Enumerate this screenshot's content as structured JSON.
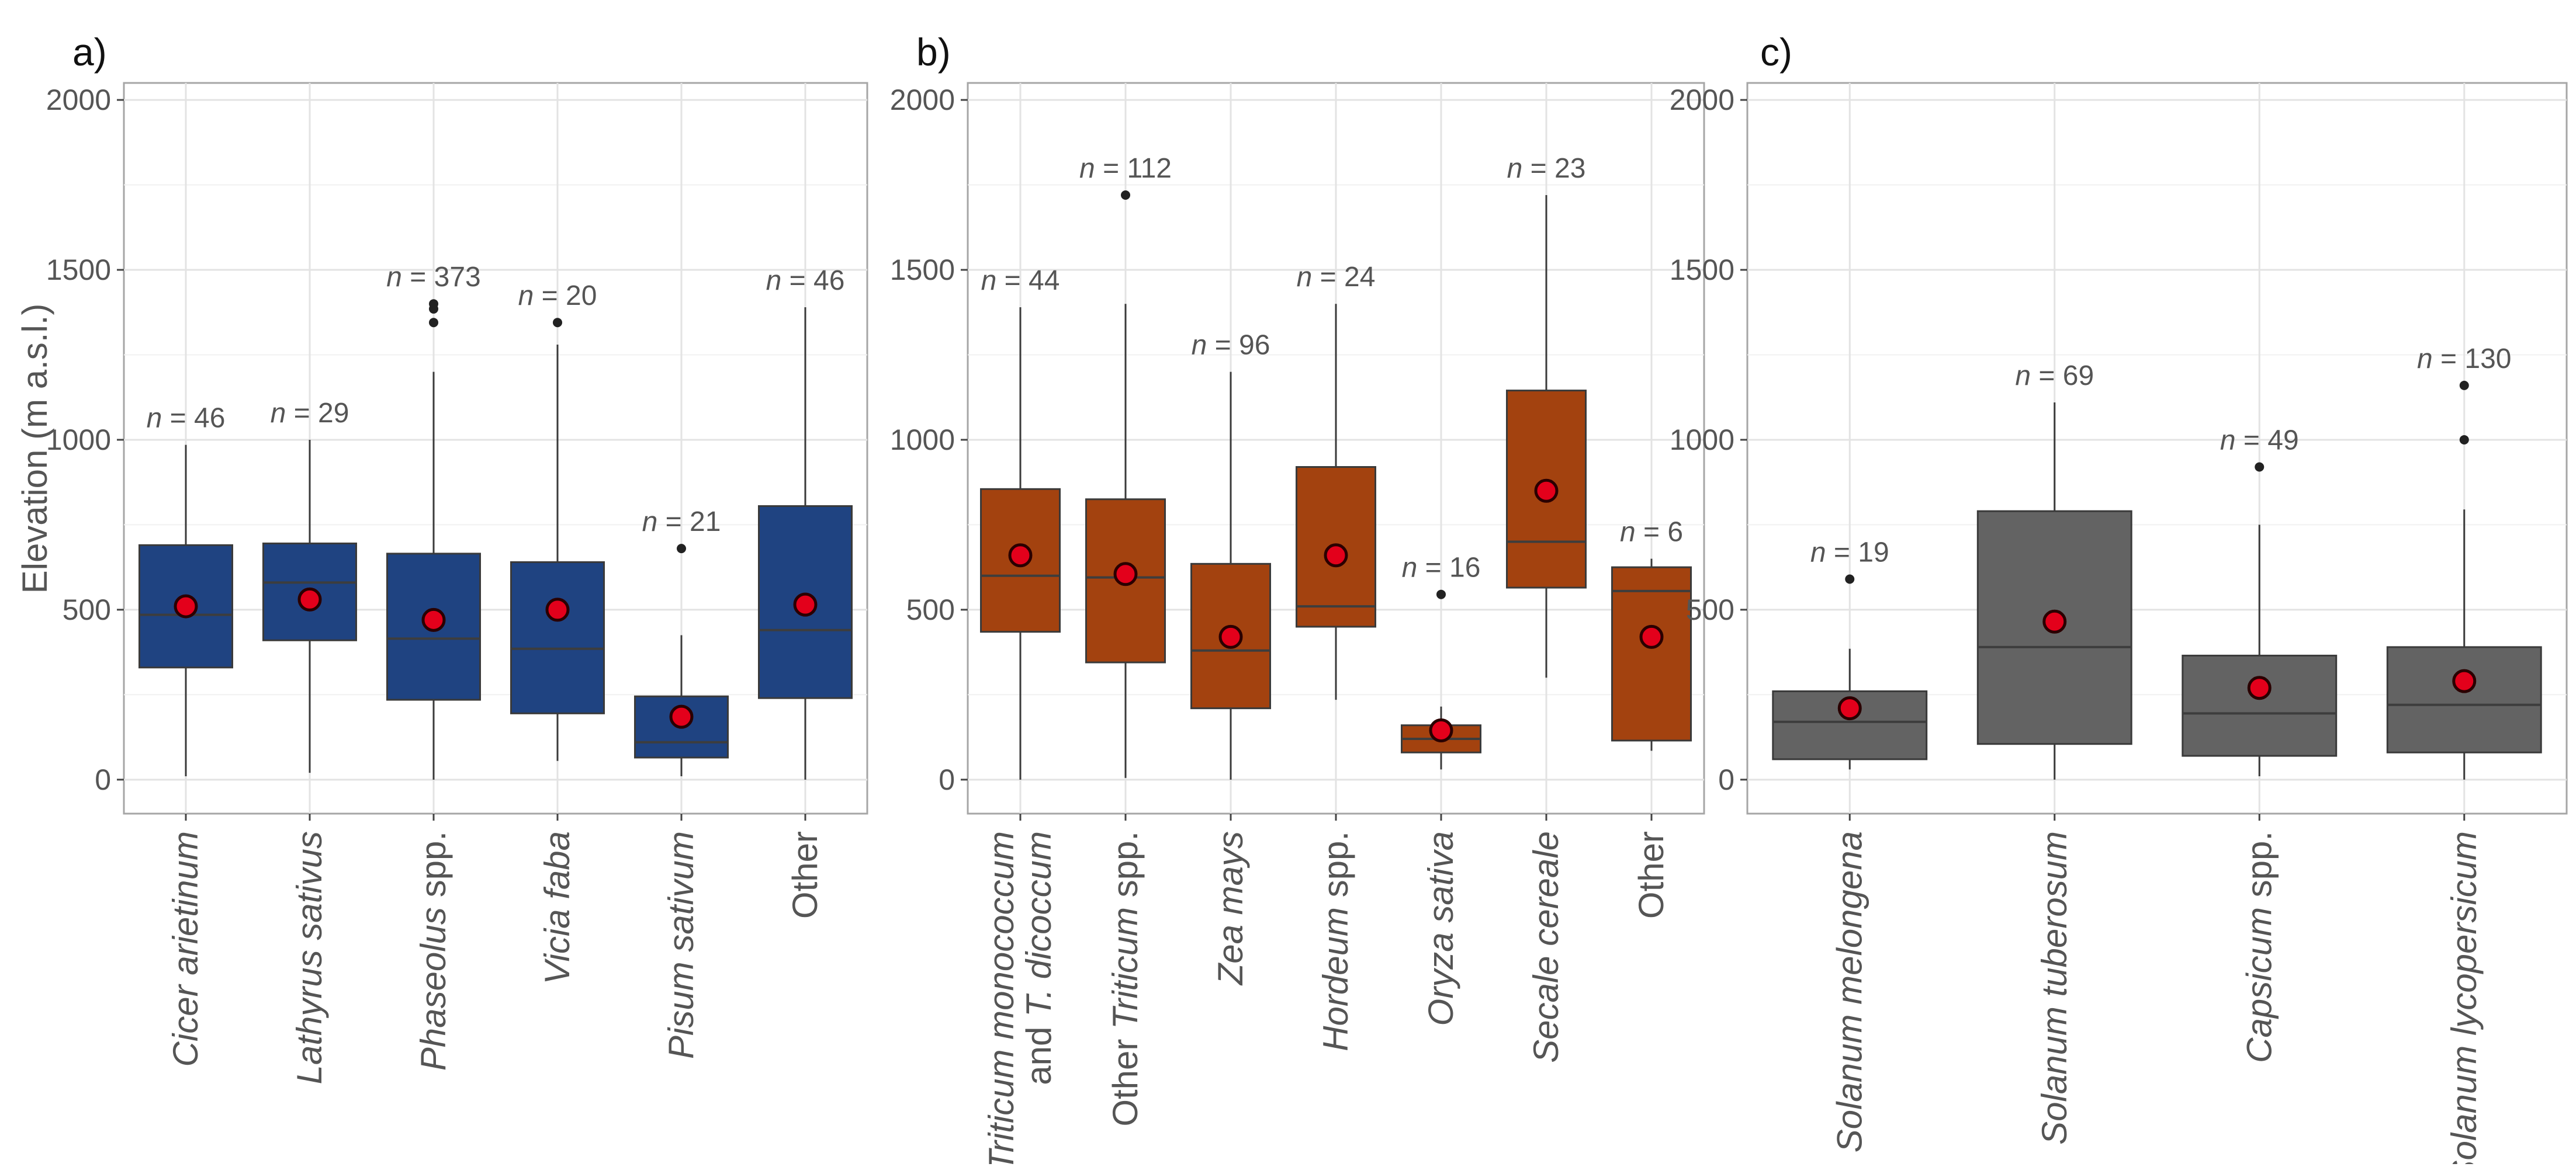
{
  "colors": {
    "legumes": "#1f4381",
    "cereals": "#a3420f",
    "solanaceae": "#636363",
    "mean_marker": "#e3001b",
    "gridline": "#e3e3e3",
    "frame": "#a6a6a6"
  },
  "y_axis_title": "Elevation (m a.s.l.)",
  "chart_data": [
    {
      "type": "box",
      "panel_label": "a)",
      "ylabel": "Elevation (m a.s.l.)",
      "ylim": [
        -100,
        2050
      ],
      "yticks": [
        0,
        500,
        1000,
        1500,
        2000
      ],
      "grid": true,
      "fill_color": "#1f4381",
      "categories": [
        {
          "name": "Cicer arietinum",
          "name_lines": [
            [
              {
                "t": "Cicer arietinum",
                "i": true
              }
            ]
          ],
          "n_label": "n = 46",
          "n": 46,
          "min": 10,
          "q1": 330,
          "median": 485,
          "q3": 690,
          "max": 985,
          "mean": 510,
          "outliers": []
        },
        {
          "name": "Lathyrus sativus",
          "name_lines": [
            [
              {
                "t": "Lathyrus sativus",
                "i": true
              }
            ]
          ],
          "n_label": "n = 29",
          "n": 29,
          "min": 20,
          "q1": 410,
          "median": 580,
          "q3": 695,
          "max": 1000,
          "mean": 530,
          "outliers": []
        },
        {
          "name": "Phaseolus spp.",
          "name_lines": [
            [
              {
                "t": "Phaseolus",
                "i": true
              },
              {
                "t": "  spp.",
                "i": false
              }
            ]
          ],
          "n_label": "n = 373",
          "n": 373,
          "min": 0,
          "q1": 235,
          "median": 415,
          "q3": 665,
          "max": 1200,
          "mean": 470,
          "outliers": [
            1345,
            1385,
            1400
          ]
        },
        {
          "name": "Vicia faba",
          "name_lines": [
            [
              {
                "t": "Vicia faba",
                "i": true
              }
            ]
          ],
          "n_label": "n = 20",
          "n": 20,
          "min": 55,
          "q1": 195,
          "median": 385,
          "q3": 640,
          "max": 1280,
          "mean": 500,
          "outliers": [
            1345
          ]
        },
        {
          "name": "Pisum sativum",
          "name_lines": [
            [
              {
                "t": "Pisum sativum",
                "i": true
              }
            ]
          ],
          "n_label": "n = 21",
          "n": 21,
          "min": 10,
          "q1": 65,
          "median": 110,
          "q3": 245,
          "max": 425,
          "mean": 185,
          "outliers": [
            680
          ]
        },
        {
          "name": "Other",
          "name_lines": [
            [
              {
                "t": "Other",
                "i": false
              }
            ]
          ],
          "n_label": "n = 46",
          "n": 46,
          "min": 0,
          "q1": 240,
          "median": 440,
          "q3": 805,
          "max": 1390,
          "mean": 515,
          "outliers": []
        }
      ]
    },
    {
      "type": "box",
      "panel_label": "b)",
      "ylim": [
        -100,
        2050
      ],
      "yticks": [
        0,
        500,
        1000,
        1500,
        2000
      ],
      "grid": true,
      "fill_color": "#a3420f",
      "categories": [
        {
          "name": "Triticum monococcum and T. dicoccum",
          "name_lines": [
            [
              {
                "t": "Triticum monococcum",
                "i": true
              }
            ],
            [
              {
                "t": "and  ",
                "i": false
              },
              {
                "t": "T. dicoccum",
                "i": true
              }
            ]
          ],
          "n_label": "n = 44",
          "n": 44,
          "min": 0,
          "q1": 435,
          "median": 600,
          "q3": 855,
          "max": 1390,
          "mean": 660,
          "outliers": []
        },
        {
          "name": "Other Triticum spp.",
          "name_lines": [
            [
              {
                "t": "Other ",
                "i": false
              },
              {
                "t": "Triticum",
                "i": true
              },
              {
                "t": " spp.",
                "i": false
              }
            ]
          ],
          "n_label": "n = 112",
          "n": 112,
          "min": 5,
          "q1": 345,
          "median": 595,
          "q3": 825,
          "max": 1400,
          "mean": 605,
          "outliers": [
            1720
          ]
        },
        {
          "name": "Zea mays",
          "name_lines": [
            [
              {
                "t": "Zea mays",
                "i": true
              }
            ]
          ],
          "n_label": "n = 96",
          "n": 96,
          "min": 0,
          "q1": 210,
          "median": 380,
          "q3": 635,
          "max": 1200,
          "mean": 420,
          "outliers": []
        },
        {
          "name": "Hordeum spp.",
          "name_lines": [
            [
              {
                "t": "Hordeum",
                "i": true
              },
              {
                "t": " spp.",
                "i": false
              }
            ]
          ],
          "n_label": "n = 24",
          "n": 24,
          "min": 235,
          "q1": 450,
          "median": 510,
          "q3": 920,
          "max": 1400,
          "mean": 660,
          "outliers": []
        },
        {
          "name": "Oryza sativa",
          "name_lines": [
            [
              {
                "t": "Oryza sativa",
                "i": true
              }
            ]
          ],
          "n_label": "n = 16",
          "n": 16,
          "min": 30,
          "q1": 80,
          "median": 120,
          "q3": 160,
          "max": 215,
          "mean": 145,
          "outliers": [
            545
          ]
        },
        {
          "name": "Secale cereale",
          "name_lines": [
            [
              {
                "t": "Secale cereale",
                "i": true
              }
            ]
          ],
          "n_label": "n = 23",
          "n": 23,
          "min": 300,
          "q1": 565,
          "median": 700,
          "q3": 1145,
          "max": 1720,
          "mean": 850,
          "outliers": []
        },
        {
          "name": "Other",
          "name_lines": [
            [
              {
                "t": "Other",
                "i": false
              }
            ]
          ],
          "n_label": "n = 6",
          "n": 6,
          "min": 85,
          "q1": 115,
          "median": 555,
          "q3": 625,
          "max": 650,
          "mean": 420,
          "outliers": []
        }
      ]
    },
    {
      "type": "box",
      "panel_label": "c)",
      "ylim": [
        -100,
        2050
      ],
      "yticks": [
        0,
        500,
        1000,
        1500,
        2000
      ],
      "grid": true,
      "fill_color": "#636363",
      "categories": [
        {
          "name": "Solanum melongena",
          "name_lines": [
            [
              {
                "t": "Solanum melongena",
                "i": true
              }
            ]
          ],
          "n_label": "n = 19",
          "n": 19,
          "min": 30,
          "q1": 60,
          "median": 170,
          "q3": 260,
          "max": 385,
          "mean": 210,
          "outliers": [
            590
          ]
        },
        {
          "name": "Solanum tuberosum",
          "name_lines": [
            [
              {
                "t": "Solanum tuberosum",
                "i": true
              }
            ]
          ],
          "n_label": "n = 69",
          "n": 69,
          "min": 0,
          "q1": 105,
          "median": 390,
          "q3": 790,
          "max": 1110,
          "mean": 465,
          "outliers": []
        },
        {
          "name": "Capsicum spp.",
          "name_lines": [
            [
              {
                "t": "Capsicum",
                "i": true
              },
              {
                "t": " spp.",
                "i": false
              }
            ]
          ],
          "n_label": "n = 49",
          "n": 49,
          "min": 10,
          "q1": 70,
          "median": 195,
          "q3": 365,
          "max": 750,
          "mean": 270,
          "outliers": [
            920
          ]
        },
        {
          "name": "Solanum lycopersicum",
          "name_lines": [
            [
              {
                "t": "Solanum lycopersicum",
                "i": true
              }
            ]
          ],
          "n_label": "n = 130",
          "n": 130,
          "min": 0,
          "q1": 80,
          "median": 220,
          "q3": 390,
          "max": 795,
          "mean": 290,
          "outliers": [
            1000,
            1160
          ]
        }
      ]
    }
  ]
}
